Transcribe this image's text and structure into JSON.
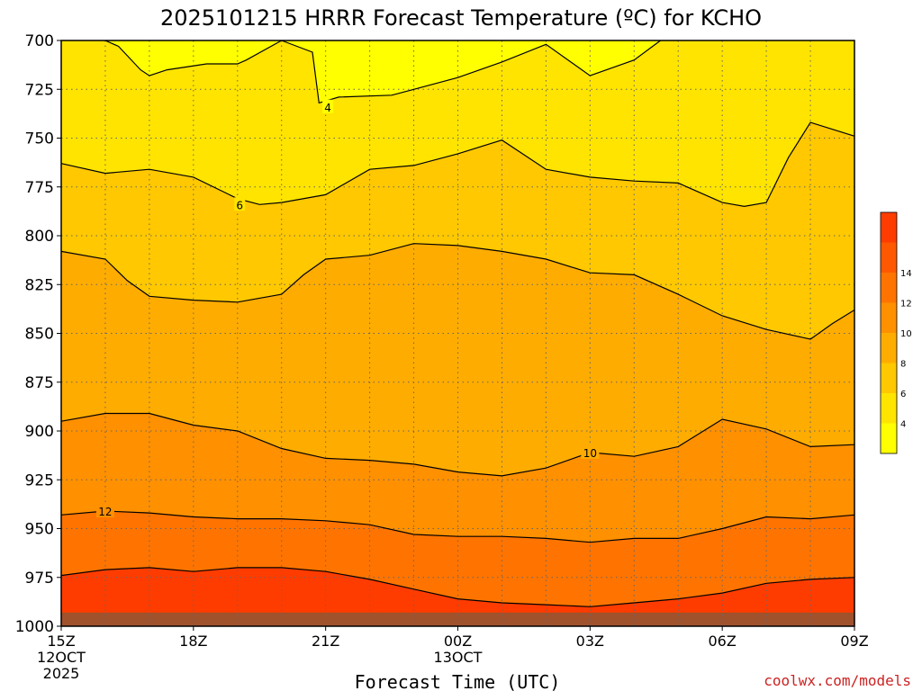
{
  "title": "2025101215 HRRR Forecast Temperature (ºC) for KCHO",
  "credit": "coolwx.com/models",
  "colors": {
    "credit": "#cc2222",
    "ground": "#a0522d",
    "contour_line": "#000000",
    "grid": "#666666",
    "bands": [
      "#ffff00",
      "#ffe400",
      "#ffc800",
      "#ffac00",
      "#ff9000",
      "#ff7400",
      "#ff5800",
      "#ff3c00"
    ]
  },
  "chart_data": {
    "type": "contour",
    "title": "2025101215 HRRR Forecast Temperature (ºC) for KCHO",
    "xlabel": "Forecast Time (UTC)",
    "ylabel": "",
    "x_unit": "forecast hour from 15Z 12OCT 2025",
    "y_unit": "hPa",
    "xlim": [
      0,
      18
    ],
    "ylim": [
      1000,
      700
    ],
    "y_ticks": [
      700,
      725,
      750,
      775,
      800,
      825,
      850,
      875,
      900,
      925,
      950,
      975,
      1000
    ],
    "x_ticks": [
      {
        "x": 0,
        "lines": [
          "15Z",
          "12OCT",
          "2025"
        ]
      },
      {
        "x": 3,
        "lines": [
          "18Z"
        ]
      },
      {
        "x": 6,
        "lines": [
          "21Z"
        ]
      },
      {
        "x": 9,
        "lines": [
          "00Z",
          "13OCT"
        ]
      },
      {
        "x": 12,
        "lines": [
          "03Z"
        ]
      },
      {
        "x": 15,
        "lines": [
          "06Z"
        ]
      },
      {
        "x": 18,
        "lines": [
          "09Z"
        ]
      }
    ],
    "grid": true,
    "colorbar": {
      "placement": "right",
      "levels": [
        2,
        4,
        6,
        8,
        10,
        12,
        14,
        16
      ],
      "labels": [
        "4",
        "6",
        "8",
        "10",
        "12",
        "14"
      ]
    },
    "contours": [
      {
        "level": 4,
        "label": "4",
        "label_pos": [
          6.05,
          734
        ],
        "points": [
          [
            1,
            700
          ],
          [
            1.3,
            703
          ],
          [
            1.8,
            715
          ],
          [
            2,
            718
          ],
          [
            2.4,
            715
          ],
          [
            3.3,
            712
          ],
          [
            4,
            712
          ],
          [
            4.2,
            710
          ],
          [
            5,
            700
          ],
          [
            5.7,
            706
          ],
          [
            5.85,
            732
          ],
          [
            6.3,
            729
          ],
          [
            7.5,
            728
          ],
          [
            8,
            725
          ],
          [
            9,
            719
          ],
          [
            10,
            711
          ],
          [
            11,
            702
          ],
          [
            12,
            718
          ],
          [
            13,
            710
          ],
          [
            13.6,
            700
          ]
        ]
      },
      {
        "level": 6,
        "label": "6",
        "label_pos": [
          4.05,
          784
        ],
        "points": [
          [
            0,
            763
          ],
          [
            1,
            768
          ],
          [
            2,
            766
          ],
          [
            3,
            770
          ],
          [
            4,
            781
          ],
          [
            4.5,
            784
          ],
          [
            5,
            783
          ],
          [
            6,
            779
          ],
          [
            7,
            766
          ],
          [
            8,
            764
          ],
          [
            9,
            758
          ],
          [
            10,
            751
          ],
          [
            11,
            766
          ],
          [
            12,
            770
          ],
          [
            13,
            772
          ],
          [
            14,
            773
          ],
          [
            15,
            783
          ],
          [
            15.5,
            785
          ],
          [
            16,
            783
          ],
          [
            16.5,
            760
          ],
          [
            17,
            742
          ],
          [
            18,
            749
          ]
        ]
      },
      {
        "level": 8,
        "label": "",
        "label_pos": null,
        "points": [
          [
            0,
            808
          ],
          [
            1,
            812
          ],
          [
            1.5,
            823
          ],
          [
            2,
            831
          ],
          [
            3,
            833
          ],
          [
            4,
            834
          ],
          [
            5,
            830
          ],
          [
            5.5,
            820
          ],
          [
            6,
            812
          ],
          [
            7,
            810
          ],
          [
            8,
            804
          ],
          [
            9,
            805
          ],
          [
            10,
            808
          ],
          [
            11,
            812
          ],
          [
            12,
            819
          ],
          [
            13,
            820
          ],
          [
            14,
            830
          ],
          [
            15,
            841
          ],
          [
            16,
            848
          ],
          [
            17,
            853
          ],
          [
            17.5,
            845
          ],
          [
            18,
            838
          ]
        ]
      },
      {
        "level": 10,
        "label": "10",
        "label_pos": [
          12,
          911
        ],
        "points": [
          [
            0,
            895
          ],
          [
            1,
            891
          ],
          [
            2,
            891
          ],
          [
            3,
            897
          ],
          [
            4,
            900
          ],
          [
            5,
            909
          ],
          [
            6,
            914
          ],
          [
            7,
            915
          ],
          [
            8,
            917
          ],
          [
            9,
            921
          ],
          [
            10,
            923
          ],
          [
            11,
            919
          ],
          [
            12,
            911
          ],
          [
            13,
            913
          ],
          [
            14,
            908
          ],
          [
            15,
            894
          ],
          [
            16,
            899
          ],
          [
            17,
            908
          ],
          [
            18,
            907
          ]
        ]
      },
      {
        "level": 12,
        "label": "12",
        "label_pos": [
          1,
          941
        ],
        "points": [
          [
            0,
            943
          ],
          [
            1,
            941
          ],
          [
            2,
            942
          ],
          [
            3,
            944
          ],
          [
            4,
            945
          ],
          [
            5,
            945
          ],
          [
            6,
            946
          ],
          [
            7,
            948
          ],
          [
            8,
            953
          ],
          [
            9,
            954
          ],
          [
            10,
            954
          ],
          [
            11,
            955
          ],
          [
            12,
            957
          ],
          [
            13,
            955
          ],
          [
            14,
            955
          ],
          [
            15,
            950
          ],
          [
            16,
            944
          ],
          [
            17,
            945
          ],
          [
            18,
            943
          ]
        ]
      },
      {
        "level": 14,
        "label": "",
        "label_pos": null,
        "points": [
          [
            0,
            974
          ],
          [
            1,
            971
          ],
          [
            2,
            970
          ],
          [
            3,
            972
          ],
          [
            4,
            970
          ],
          [
            5,
            970
          ],
          [
            6,
            972
          ],
          [
            7,
            976
          ],
          [
            8,
            981
          ],
          [
            9,
            986
          ],
          [
            10,
            988
          ],
          [
            11,
            989
          ],
          [
            12,
            990
          ],
          [
            13,
            988
          ],
          [
            14,
            986
          ],
          [
            15,
            983
          ],
          [
            16,
            978
          ],
          [
            17,
            976
          ],
          [
            18,
            975
          ]
        ]
      }
    ],
    "surface_hpa": 993
  }
}
